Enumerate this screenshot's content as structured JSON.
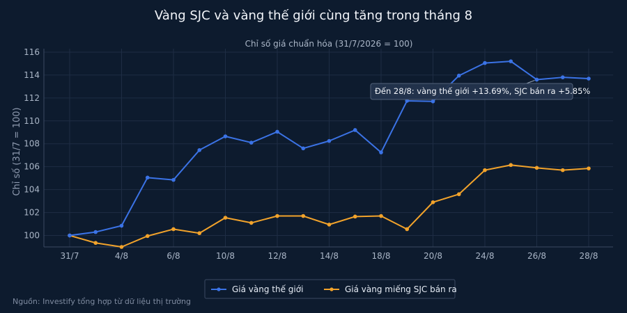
{
  "source": "Nguồn: Investify tổng hợp từ dữ liệu thị trường",
  "annotation": "Đến 28/8: vàng thế giới +13.69%, SJC bán ra +5.85%",
  "colors": {
    "background": "#0d1b2e",
    "grid": "#1e2d44",
    "world": "#3b73e6",
    "sjc": "#f2a32b"
  },
  "chart_data": {
    "type": "line",
    "title": "Vàng SJC và vàng thế giới cùng tăng trong tháng 8",
    "subtitle": "Chỉ số giá chuẩn hóa (31/7/2026 = 100)",
    "ylabel": "Chỉ số (31/7 = 100)",
    "xlabel": "",
    "ylim": [
      99,
      116.3
    ],
    "yticks": [
      100,
      102,
      104,
      106,
      108,
      110,
      112,
      114,
      116
    ],
    "x": [
      "31/7",
      "3/8",
      "4/8",
      "5/8",
      "6/8",
      "7/8",
      "10/8",
      "11/8",
      "12/8",
      "13/8",
      "14/8",
      "17/8",
      "18/8",
      "19/8",
      "20/8",
      "21/8",
      "24/8",
      "25/8",
      "26/8",
      "27/8",
      "28/8"
    ],
    "xtick_labels": [
      "31/7",
      "4/8",
      "6/8",
      "10/8",
      "12/8",
      "14/8",
      "18/8",
      "20/8",
      "24/8",
      "26/8",
      "28/8"
    ],
    "series": [
      {
        "name": "Giá vàng thế giới",
        "color": "#3b73e6",
        "values": [
          100.0,
          100.3,
          100.85,
          105.05,
          104.85,
          107.45,
          108.65,
          108.1,
          109.05,
          107.6,
          108.25,
          109.2,
          107.25,
          111.75,
          111.7,
          113.95,
          115.05,
          115.2,
          113.6,
          113.8,
          113.69
        ]
      },
      {
        "name": "Giá vàng miếng SJC bán ra",
        "color": "#f2a32b",
        "values": [
          100.0,
          99.35,
          99.0,
          99.95,
          100.55,
          100.2,
          101.55,
          101.1,
          101.7,
          101.7,
          100.95,
          101.65,
          101.7,
          100.55,
          102.9,
          103.6,
          105.7,
          106.15,
          105.9,
          105.7,
          105.85
        ]
      }
    ],
    "grid": true,
    "legend": "bottom-center"
  }
}
